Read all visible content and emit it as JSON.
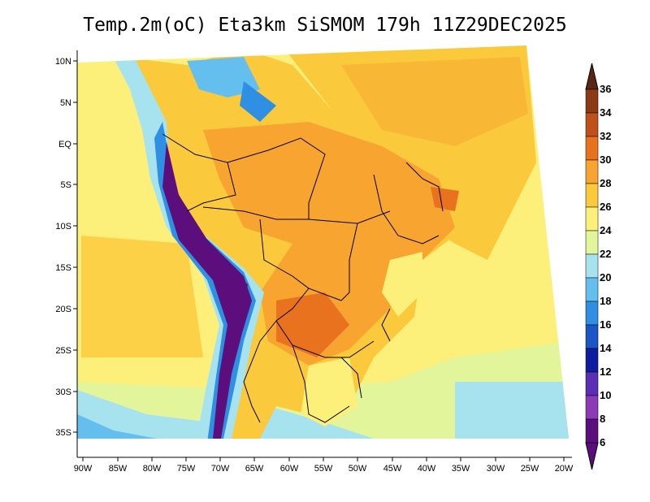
{
  "title": "Temp.2m(oC) Eta3km SiSMOM 179h 11Z29DEC2025",
  "axes": {
    "lat_labels": [
      "10N",
      "5N",
      "EQ",
      "5S",
      "10S",
      "15S",
      "20S",
      "25S",
      "30S",
      "35S"
    ],
    "lon_labels": [
      "90W",
      "85W",
      "80W",
      "75W",
      "70W",
      "65W",
      "60W",
      "55W",
      "50W",
      "45W",
      "40W",
      "35W",
      "30W",
      "25W",
      "20W"
    ]
  },
  "colorbar": {
    "labels": [
      "36",
      "34",
      "32",
      "30",
      "28",
      "26",
      "24",
      "22",
      "20",
      "18",
      "16",
      "14",
      "12",
      "10",
      "8",
      "6"
    ],
    "colors": [
      "#5a2812",
      "#8c3a14",
      "#c0501a",
      "#e8721e",
      "#f7a530",
      "#fbc93c",
      "#fdf07a",
      "#e2f59a",
      "#a7e3ef",
      "#64bfef",
      "#2e8fe3",
      "#1a56c6",
      "#0d1ea0",
      "#5a2eb5",
      "#8d3ab8",
      "#5c0f7c"
    ]
  },
  "legend_colors": {
    "ocean_warm": "#fbc93c",
    "ocean_mid": "#fdf07a",
    "ocean_cool": "#e2f59a",
    "land_hot": "#f7a530",
    "andes": "#5c0f7c",
    "border": "#000000"
  }
}
